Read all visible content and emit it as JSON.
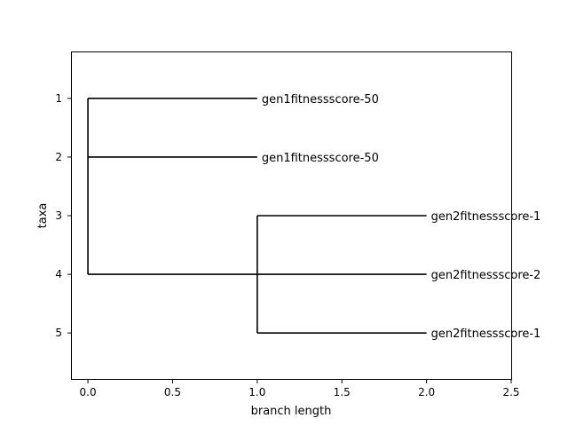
{
  "chart_data": {
    "type": "tree",
    "xlabel": "branch length",
    "ylabel": "taxa",
    "xlim": [
      -0.1,
      2.5
    ],
    "ylim": [
      5.8,
      0.2
    ],
    "x_ticks": [
      "0.0",
      "0.5",
      "1.0",
      "1.5",
      "2.0",
      "2.5"
    ],
    "y_ticks": [
      "1",
      "2",
      "3",
      "4",
      "5"
    ],
    "leaves": [
      {
        "label": "gen1fitnessscore-50",
        "row": 1,
        "x": 1.0
      },
      {
        "label": "gen1fitnessscore-50",
        "row": 2,
        "x": 1.0
      },
      {
        "label": "gen2fitnessscore-1",
        "row": 3,
        "x": 2.0
      },
      {
        "label": "gen2fitnessscore-2",
        "row": 4,
        "x": 2.0
      },
      {
        "label": "gen2fitnessscore-1",
        "row": 5,
        "x": 2.0
      }
    ],
    "clades": [
      {
        "x": 0.0,
        "y_range": [
          1,
          4
        ],
        "children_rows": [
          1,
          2,
          4
        ]
      },
      {
        "x": 1.0,
        "y_range": [
          3,
          5
        ],
        "children_rows": [
          3,
          4,
          5
        ]
      }
    ],
    "edges": [
      {
        "x0": 0.0,
        "x1": 1.0,
        "row": 1
      },
      {
        "x0": 0.0,
        "x1": 1.0,
        "row": 2
      },
      {
        "x0": 0.0,
        "x1": 1.0,
        "row": 4
      },
      {
        "x0": 1.0,
        "x1": 2.0,
        "row": 3
      },
      {
        "x0": 1.0,
        "x1": 2.0,
        "row": 4
      },
      {
        "x0": 1.0,
        "x1": 2.0,
        "row": 5
      }
    ]
  }
}
